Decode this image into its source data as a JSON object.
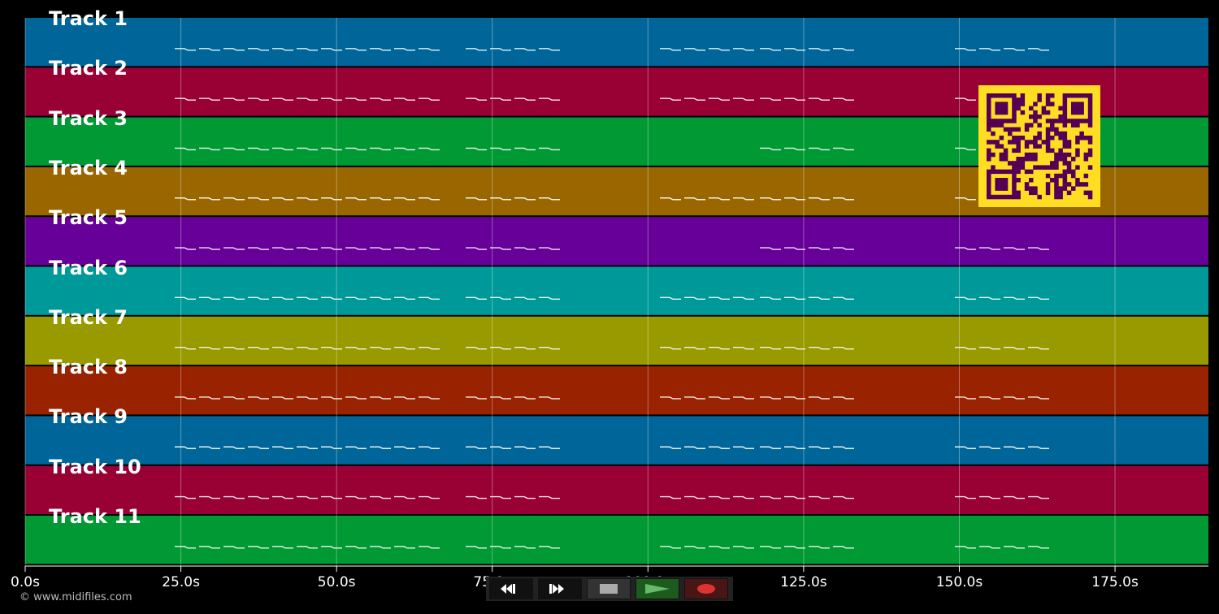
{
  "tracks": [
    {
      "label": "Track 1",
      "color": "#006699"
    },
    {
      "label": "Track 2",
      "color": "#990033"
    },
    {
      "label": "Track 3",
      "color": "#009933"
    },
    {
      "label": "Track 4",
      "color": "#996600"
    },
    {
      "label": "Track 5",
      "color": "#660099"
    },
    {
      "label": "Track 6",
      "color": "#009999"
    },
    {
      "label": "Track 7",
      "color": "#999900"
    },
    {
      "label": "Track 8",
      "color": "#992200"
    },
    {
      "label": "Track 9",
      "color": "#006699"
    },
    {
      "label": "Track 10",
      "color": "#990033"
    },
    {
      "label": "Track 11",
      "color": "#009933"
    }
  ],
  "time_axis": {
    "ticks": [
      "0.0s",
      "25.0s",
      "50.0s",
      "75.0s",
      "100.0s",
      "125.0s",
      "150.0s",
      "175.0s"
    ]
  },
  "copyright": "© www.midifiles.com",
  "transport": {
    "rewind_icon": "rewind-icon",
    "forward_icon": "fast-forward-icon",
    "stop_icon": "stop-icon",
    "play_icon": "play-icon",
    "record_icon": "record-icon"
  },
  "qr_colors": {
    "fg": "#550055",
    "bg": "#ffdd22"
  }
}
